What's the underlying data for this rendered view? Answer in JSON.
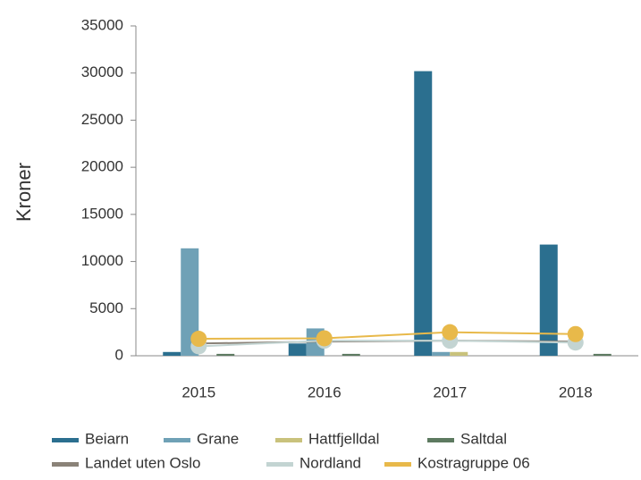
{
  "chart_data": {
    "type": "bar",
    "y_label": "Kroner",
    "categories": [
      "2015",
      "2016",
      "2017",
      "2018"
    ],
    "ylim": [
      0,
      35000
    ],
    "yticks": [
      0,
      5000,
      10000,
      15000,
      20000,
      25000,
      30000,
      35000
    ],
    "grid": false,
    "series": [
      {
        "name": "Beiarn",
        "color": "#2b6f8f",
        "type": "bar",
        "values": [
          400,
          1300,
          30200,
          11800
        ]
      },
      {
        "name": "Grane",
        "color": "#6fa1b6",
        "type": "bar",
        "values": [
          11400,
          2900,
          400,
          0
        ]
      },
      {
        "name": "Hattfjelldal",
        "color": "#c9c27c",
        "type": "bar",
        "values": [
          0,
          0,
          400,
          0
        ]
      },
      {
        "name": "Saltdal",
        "color": "#5d7a60",
        "type": "bar",
        "values": [
          200,
          200,
          0,
          200
        ]
      },
      {
        "name": "Landet uten Oslo",
        "color": "#8a8278",
        "type": "line",
        "values": [
          1300,
          1500,
          1600,
          1500
        ]
      },
      {
        "name": "Nordland",
        "color": "#c3d4d2",
        "type": "line",
        "values": [
          1000,
          1600,
          1600,
          1400
        ]
      },
      {
        "name": "Kostragruppe 06",
        "color": "#e8b94a",
        "type": "line",
        "values": [
          1800,
          1850,
          2500,
          2300
        ]
      }
    ]
  }
}
